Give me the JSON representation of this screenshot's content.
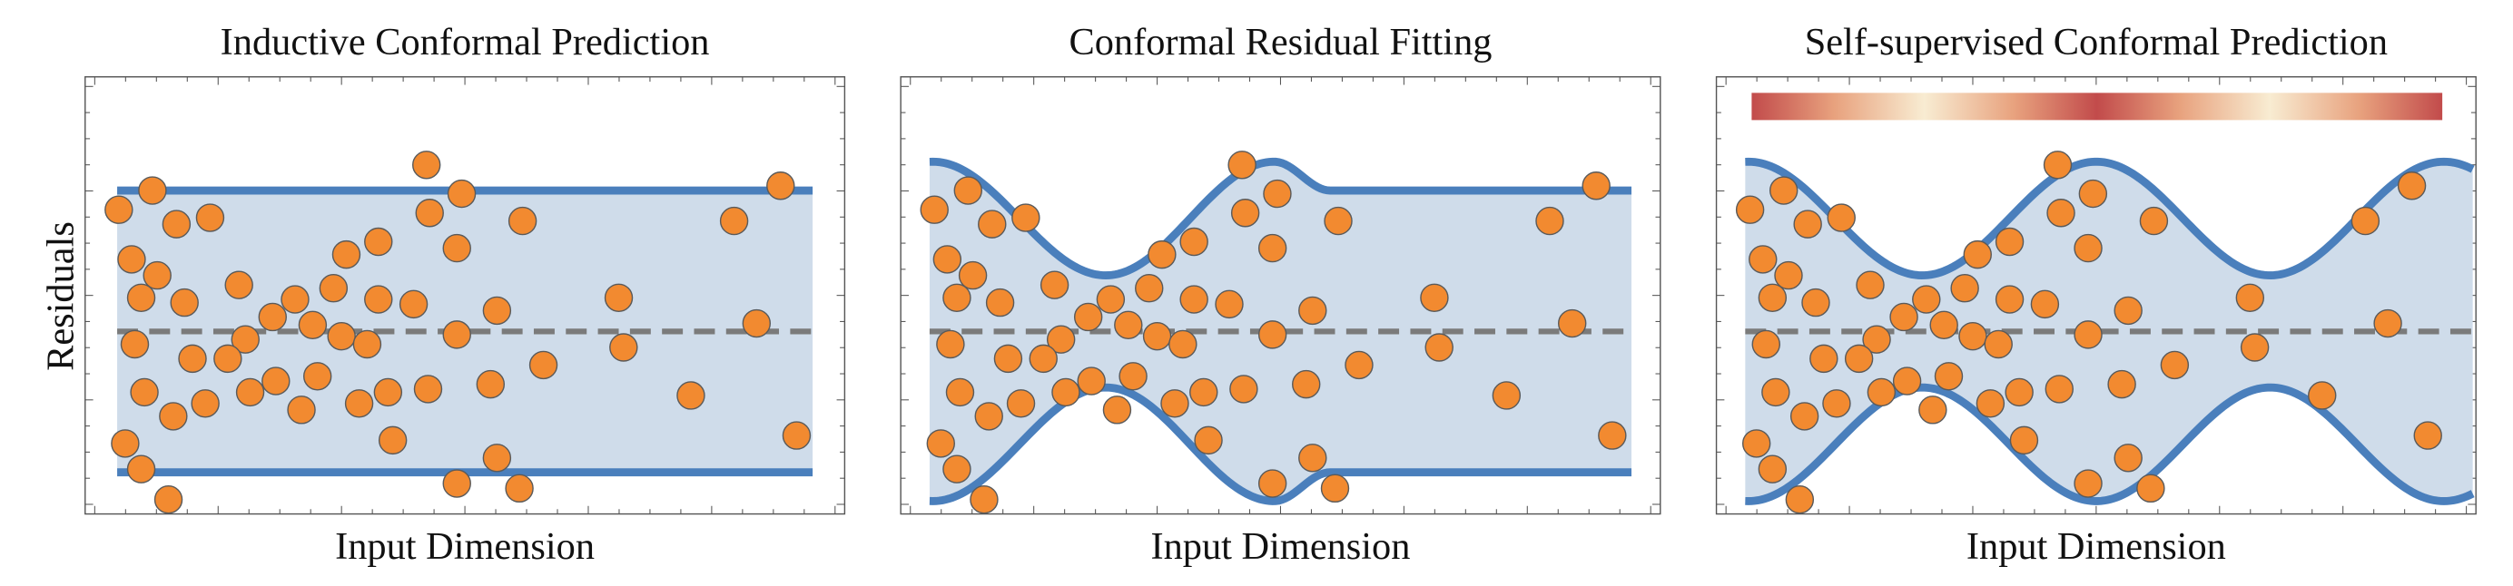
{
  "y_label": "Residuals",
  "panels": [
    {
      "title": "Inductive Conformal Prediction",
      "x_label": "Input Dimension"
    },
    {
      "title": "Conformal Residual Fitting",
      "x_label": "Input Dimension"
    },
    {
      "title": "Self-supervised Conformal Prediction",
      "x_label": "Input Dimension"
    }
  ]
}
